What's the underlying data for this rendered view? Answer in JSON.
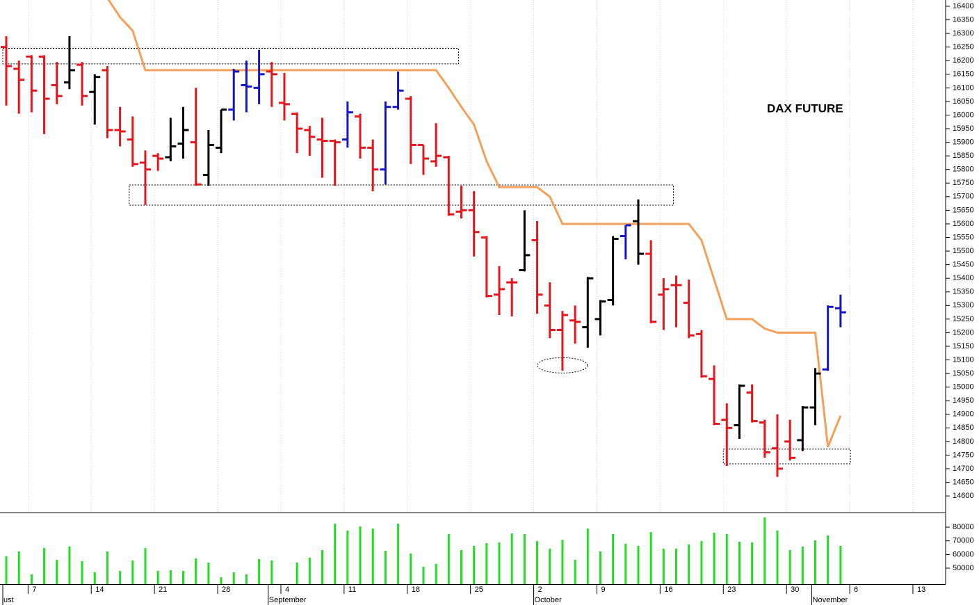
{
  "chart_data": [
    {
      "type": "ohlc",
      "title": "DAX FUTURE",
      "x": [
        "08-03",
        "08-04",
        "08-07",
        "08-08",
        "08-09",
        "08-10",
        "08-11",
        "08-14",
        "08-15",
        "08-16",
        "08-17",
        "08-18",
        "08-21",
        "08-22",
        "08-23",
        "08-24",
        "08-25",
        "08-28",
        "08-29",
        "08-30",
        "08-31",
        "09-01",
        "09-04",
        "09-05",
        "09-06",
        "09-07",
        "09-08",
        "09-11",
        "09-12",
        "09-13",
        "09-14",
        "09-15",
        "09-18",
        "09-19",
        "09-20",
        "09-21",
        "09-22",
        "09-25",
        "09-26",
        "09-27",
        "09-28",
        "09-29",
        "10-02",
        "10-03",
        "10-04",
        "10-05",
        "10-06",
        "10-09",
        "10-10",
        "10-11",
        "10-12",
        "10-13",
        "10-16",
        "10-17",
        "10-18",
        "10-19",
        "10-20",
        "10-23",
        "10-24",
        "10-25",
        "10-26",
        "10-27",
        "10-30",
        "10-31",
        "11-01",
        "11-02",
        "11-03"
      ],
      "open": [
        16250,
        16170,
        16215,
        16215,
        16110,
        16120,
        16185,
        16085,
        16165,
        15945,
        15910,
        15825,
        15850,
        15845,
        15895,
        15900,
        15780,
        15880,
        16020,
        16110,
        16100,
        16160,
        16045,
        16005,
        15945,
        15910,
        15905,
        15910,
        15995,
        15880,
        15800,
        16030,
        16060,
        15890,
        15830,
        15845,
        15645,
        15650,
        15550,
        15340,
        15385,
        15430,
        15540,
        15300,
        15210,
        15245,
        15220,
        15250,
        15320,
        15555,
        15610,
        15490,
        15340,
        15375,
        15310,
        15195,
        15030,
        14880,
        14860,
        14980,
        14870,
        14775,
        14800,
        14805,
        14925,
        15065,
        15290
      ],
      "high": [
        16290,
        16200,
        16220,
        16220,
        16195,
        16290,
        16195,
        16150,
        16180,
        16030,
        15995,
        15870,
        15860,
        15990,
        16030,
        16100,
        15945,
        16020,
        16170,
        16200,
        16240,
        16195,
        16155,
        16010,
        15960,
        15990,
        15910,
        16050,
        16005,
        15910,
        16050,
        16160,
        16070,
        15890,
        15970,
        15850,
        15740,
        15720,
        15555,
        15445,
        15400,
        15650,
        15610,
        15385,
        15280,
        15300,
        15405,
        15320,
        15555,
        15595,
        15690,
        15540,
        15400,
        15410,
        15395,
        15210,
        15080,
        14940,
        15010,
        15010,
        14880,
        14900,
        14880,
        14930,
        15070,
        15300,
        15340
      ],
      "low": [
        16035,
        16005,
        16010,
        15930,
        16040,
        16095,
        16035,
        15965,
        15915,
        15885,
        15810,
        15670,
        15795,
        15830,
        15840,
        15740,
        15740,
        15860,
        15980,
        16010,
        16040,
        16030,
        15980,
        15860,
        15850,
        15770,
        15740,
        15880,
        15840,
        15720,
        15745,
        16020,
        15820,
        15780,
        15810,
        15630,
        15620,
        15480,
        15330,
        15265,
        15260,
        15425,
        15270,
        15180,
        15060,
        15160,
        15145,
        15190,
        15300,
        15470,
        15450,
        15235,
        15210,
        15220,
        15180,
        15035,
        14860,
        14710,
        14810,
        14870,
        14740,
        14670,
        14730,
        14765,
        14860,
        15060,
        15220
      ],
      "close": [
        16180,
        16130,
        16090,
        16060,
        16070,
        16165,
        16070,
        16140,
        15945,
        15940,
        15820,
        15800,
        15840,
        15885,
        15945,
        15745,
        15890,
        16020,
        16160,
        16105,
        16150,
        16150,
        16040,
        15950,
        15920,
        15905,
        15900,
        16010,
        15880,
        15800,
        16030,
        16090,
        15890,
        15840,
        15850,
        15635,
        15650,
        15570,
        15335,
        15360,
        15385,
        15485,
        15340,
        15210,
        15265,
        15240,
        15400,
        15315,
        15545,
        15595,
        15490,
        15240,
        15360,
        15375,
        15190,
        15040,
        14865,
        14850,
        15005,
        14875,
        14760,
        14700,
        14740,
        14925,
        15050,
        15295,
        15275
      ],
      "colors": [
        "#e8141c",
        "#e8141c",
        "#e8141c",
        "#e8141c",
        "#e8141c",
        "#000000",
        "#e8141c",
        "#000000",
        "#e8141c",
        "#e8141c",
        "#e8141c",
        "#e8141c",
        "#e8141c",
        "#000000",
        "#000000",
        "#e8141c",
        "#000000",
        "#000000",
        "#1414c8",
        "#1414c8",
        "#1414c8",
        "#e8141c",
        "#e8141c",
        "#e8141c",
        "#e8141c",
        "#e8141c",
        "#e8141c",
        "#1414c8",
        "#e8141c",
        "#e8141c",
        "#1414c8",
        "#1414c8",
        "#e8141c",
        "#e8141c",
        "#e8141c",
        "#e8141c",
        "#e8141c",
        "#e8141c",
        "#e8141c",
        "#e8141c",
        "#e8141c",
        "#000000",
        "#e8141c",
        "#e8141c",
        "#e8141c",
        "#e8141c",
        "#000000",
        "#000000",
        "#000000",
        "#1414c8",
        "#000000",
        "#e8141c",
        "#e8141c",
        "#e8141c",
        "#e8141c",
        "#e8141c",
        "#e8141c",
        "#e8141c",
        "#000000",
        "#e8141c",
        "#e8141c",
        "#e8141c",
        "#e8141c",
        "#000000",
        "#000000",
        "#1414c8",
        "#1414c8"
      ],
      "stop": {
        "color": "#f5a05a",
        "values": [
          null,
          null,
          null,
          null,
          null,
          null,
          null,
          null,
          16430,
          16360,
          16310,
          16165,
          16165,
          16165,
          16165,
          16165,
          16165,
          16165,
          16165,
          16165,
          16165,
          16165,
          16165,
          16165,
          16165,
          16165,
          16165,
          16165,
          16165,
          16165,
          16165,
          16165,
          16165,
          16165,
          16165,
          16100,
          16030,
          15965,
          15830,
          15735,
          15735,
          15735,
          15735,
          15700,
          15600,
          15600,
          15600,
          15600,
          15600,
          15600,
          15600,
          15600,
          15600,
          15600,
          15600,
          15540,
          15395,
          15250,
          15250,
          15250,
          15215,
          15200,
          15200,
          15200,
          15200,
          14780,
          14895
        ]
      },
      "zones": [
        {
          "from": "08-03",
          "to": "09-22",
          "high": 16245,
          "low": 16188
        },
        {
          "from": "08-17",
          "to": "10-17",
          "high": 15743,
          "low": 15669
        },
        {
          "from": "10-23",
          "to": "11-06",
          "high": 14772,
          "low": 14718
        }
      ],
      "ellipse": {
        "x": "10-04",
        "value": 15080
      },
      "ylim": [
        14539,
        16423
      ],
      "yticks": [
        14600,
        14650,
        14700,
        14750,
        14800,
        14850,
        14900,
        14950,
        15000,
        15050,
        15100,
        15150,
        15200,
        15250,
        15300,
        15350,
        15400,
        15450,
        15500,
        15550,
        15600,
        15650,
        15700,
        15750,
        15800,
        15850,
        15900,
        15950,
        16000,
        16050,
        16100,
        16150,
        16200,
        16250,
        16300,
        16350,
        16400
      ],
      "xticks": [
        {
          "value": "08-07",
          "label": "7"
        },
        {
          "value": "08-14",
          "label": "14"
        },
        {
          "value": "08-21",
          "label": "21"
        },
        {
          "value": "08-28",
          "label": "28"
        },
        {
          "value": "09-04",
          "label": "4"
        },
        {
          "value": "09-11",
          "label": "11"
        },
        {
          "value": "09-18",
          "label": "18"
        },
        {
          "value": "09-25",
          "label": "25"
        },
        {
          "value": "10-02",
          "label": "2"
        },
        {
          "value": "10-09",
          "label": "9"
        },
        {
          "value": "10-16",
          "label": "16"
        },
        {
          "value": "10-23",
          "label": "23"
        },
        {
          "value": "10-30",
          "label": "30"
        },
        {
          "value": "11-06",
          "label": "6"
        },
        {
          "value": "11-13",
          "label": "13"
        }
      ],
      "month_labels": [
        {
          "value": "08-03",
          "label": "ust"
        },
        {
          "value": "09-01",
          "label": "September"
        },
        {
          "value": "10-02",
          "label": "October"
        },
        {
          "value": "11-01",
          "label": "November"
        }
      ]
    },
    {
      "type": "bar",
      "color": "#22dd22",
      "values": [
        58600,
        62200,
        45400,
        64700,
        56100,
        65800,
        55100,
        47000,
        62200,
        48000,
        55600,
        64700,
        48000,
        48500,
        48000,
        57100,
        54100,
        43400,
        47000,
        45400,
        56600,
        55600,
        null,
        54100,
        57600,
        63200,
        82500,
        77500,
        80500,
        79000,
        62700,
        82500,
        60700,
        51000,
        53100,
        74900,
        63200,
        66300,
        68300,
        68800,
        75400,
        74900,
        69800,
        64200,
        70800,
        56100,
        79000,
        62200,
        74900,
        67800,
        66300,
        76400,
        64200,
        64200,
        67300,
        69800,
        75900,
        74900,
        69300,
        68800,
        87100,
        77500,
        63200,
        65800,
        70300,
        73900,
        66300
      ],
      "ylim": [
        38300,
        90200
      ],
      "yticks": [
        50000,
        60000,
        70000,
        80000
      ]
    }
  ]
}
